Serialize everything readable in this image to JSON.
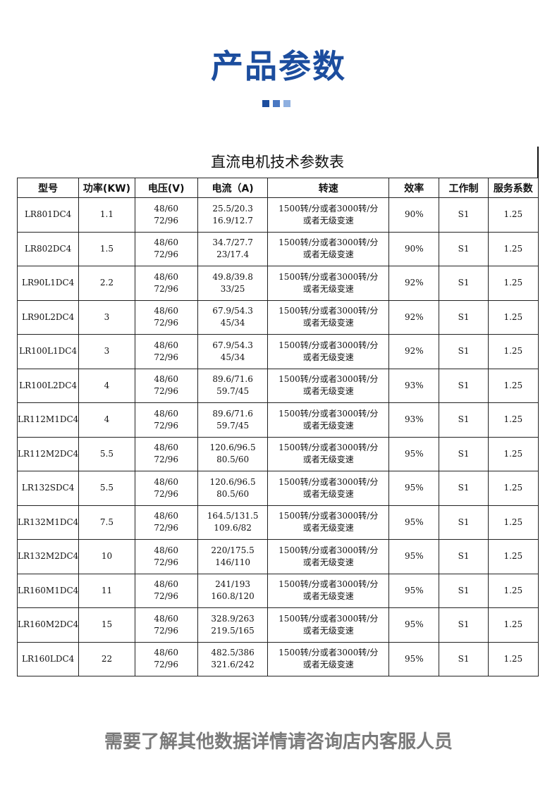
{
  "header": {
    "title": "产品参数",
    "accent_colors": [
      "#1c4d9e",
      "#4a78c2",
      "#8fb0e0"
    ]
  },
  "table": {
    "title": "直流电机技术参数表",
    "columns": [
      "型号",
      "功率(KW)",
      "电压(V)",
      "电流（A)",
      "转速",
      "效率",
      "工作制",
      "服务系数"
    ],
    "rows": [
      {
        "model": "LR801DC4",
        "power": "1.1",
        "voltage": [
          "48/60",
          "72/96"
        ],
        "current": [
          "25.5/20.3",
          "16.9/12.7"
        ],
        "speed": [
          "1500转/分或者3000转/分",
          "或者无级变速"
        ],
        "efficiency": "90%",
        "duty": "S1",
        "service_factor": "1.25"
      },
      {
        "model": "LR802DC4",
        "power": "1.5",
        "voltage": [
          "48/60",
          "72/96"
        ],
        "current": [
          "34.7/27.7",
          "23/17.4"
        ],
        "speed": [
          "1500转/分或者3000转/分",
          "或者无级变速"
        ],
        "efficiency": "90%",
        "duty": "S1",
        "service_factor": "1.25"
      },
      {
        "model": "LR90L1DC4",
        "power": "2.2",
        "voltage": [
          "48/60",
          "72/96"
        ],
        "current": [
          "49.8/39.8",
          "33/25"
        ],
        "speed": [
          "1500转/分或者3000转/分",
          "或者无级变速"
        ],
        "efficiency": "92%",
        "duty": "S1",
        "service_factor": "1.25"
      },
      {
        "model": "LR90L2DC4",
        "power": "3",
        "voltage": [
          "48/60",
          "72/96"
        ],
        "current": [
          "67.9/54.3",
          "45/34"
        ],
        "speed": [
          "1500转/分或者3000转/分",
          "或者无级变速"
        ],
        "efficiency": "92%",
        "duty": "S1",
        "service_factor": "1.25"
      },
      {
        "model": "LR100L1DC4",
        "power": "3",
        "voltage": [
          "48/60",
          "72/96"
        ],
        "current": [
          "67.9/54.3",
          "45/34"
        ],
        "speed": [
          "1500转/分或者3000转/分",
          "或者无级变速"
        ],
        "efficiency": "92%",
        "duty": "S1",
        "service_factor": "1.25"
      },
      {
        "model": "LR100L2DC4",
        "power": "4",
        "voltage": [
          "48/60",
          "72/96"
        ],
        "current": [
          "89.6/71.6",
          "59.7/45"
        ],
        "speed": [
          "1500转/分或者3000转/分",
          "或者无级变速"
        ],
        "efficiency": "93%",
        "duty": "S1",
        "service_factor": "1.25"
      },
      {
        "model": "LR112M1DC4",
        "power": "4",
        "voltage": [
          "48/60",
          "72/96"
        ],
        "current": [
          "89.6/71.6",
          "59.7/45"
        ],
        "speed": [
          "1500转/分或者3000转/分",
          "或者无级变速"
        ],
        "efficiency": "93%",
        "duty": "S1",
        "service_factor": "1.25"
      },
      {
        "model": "LR112M2DC4",
        "power": "5.5",
        "voltage": [
          "48/60",
          "72/96"
        ],
        "current": [
          "120.6/96.5",
          "80.5/60"
        ],
        "speed": [
          "1500转/分或者3000转/分",
          "或者无级变速"
        ],
        "efficiency": "95%",
        "duty": "S1",
        "service_factor": "1.25"
      },
      {
        "model": "LR132SDC4",
        "power": "5.5",
        "voltage": [
          "48/60",
          "72/96"
        ],
        "current": [
          "120.6/96.5",
          "80.5/60"
        ],
        "speed": [
          "1500转/分或者3000转/分",
          "或者无级变速"
        ],
        "efficiency": "95%",
        "duty": "S1",
        "service_factor": "1.25"
      },
      {
        "model": "LR132M1DC4",
        "power": "7.5",
        "voltage": [
          "48/60",
          "72/96"
        ],
        "current": [
          "164.5/131.5",
          "109.6/82"
        ],
        "speed": [
          "1500转/分或者3000转/分",
          "或者无级变速"
        ],
        "efficiency": "95%",
        "duty": "S1",
        "service_factor": "1.25"
      },
      {
        "model": "LR132M2DC4",
        "power": "10",
        "voltage": [
          "48/60",
          "72/96"
        ],
        "current": [
          "220/175.5",
          "146/110"
        ],
        "speed": [
          "1500转/分或者3000转/分",
          "或者无级变速"
        ],
        "efficiency": "95%",
        "duty": "S1",
        "service_factor": "1.25"
      },
      {
        "model": "LR160M1DC4",
        "power": "11",
        "voltage": [
          "48/60",
          "72/96"
        ],
        "current": [
          "241/193",
          "160.8/120"
        ],
        "speed": [
          "1500转/分或者3000转/分",
          "或者无级变速"
        ],
        "efficiency": "95%",
        "duty": "S1",
        "service_factor": "1.25"
      },
      {
        "model": "LR160M2DC4",
        "power": "15",
        "voltage": [
          "48/60",
          "72/96"
        ],
        "current": [
          "328.9/263",
          "219.5/165"
        ],
        "speed": [
          "1500转/分或者3000转/分",
          "或者无级变速"
        ],
        "efficiency": "95%",
        "duty": "S1",
        "service_factor": "1.25"
      },
      {
        "model": "LR160LDC4",
        "power": "22",
        "voltage": [
          "48/60",
          "72/96"
        ],
        "current": [
          "482.5/386",
          "321.6/242"
        ],
        "speed": [
          "1500转/分或者3000转/分",
          "或者无级变速"
        ],
        "efficiency": "95%",
        "duty": "S1",
        "service_factor": "1.25"
      }
    ]
  },
  "footer": {
    "note": "需要了解其他数据详情请咨询店内客服人员"
  }
}
